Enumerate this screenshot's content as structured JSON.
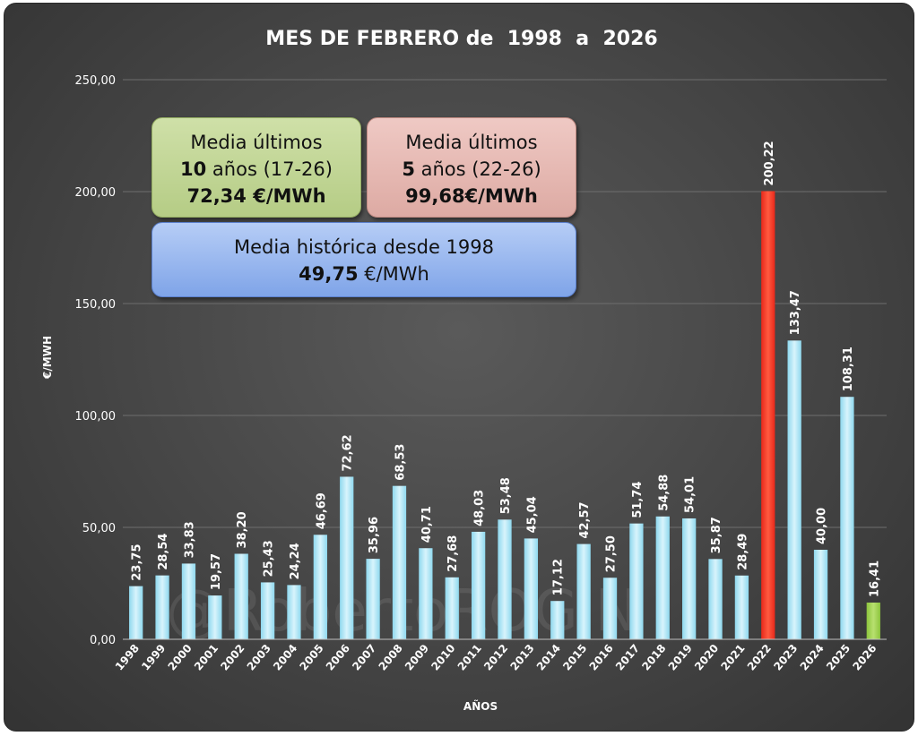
{
  "chart_data": {
    "type": "bar",
    "title": "MES DE FEBRERO de  1998  a  2026",
    "xlabel": "AÑOS",
    "ylabel": "€/MWH",
    "ylim": [
      0,
      250
    ],
    "yticks": [
      "0,00",
      "50,00",
      "100,00",
      "150,00",
      "200,00",
      "250,00"
    ],
    "grid": true,
    "categories": [
      "1998",
      "1999",
      "2000",
      "2001",
      "2002",
      "2003",
      "2004",
      "2005",
      "2006",
      "2007",
      "2008",
      "2009",
      "2010",
      "2011",
      "2012",
      "2013",
      "2014",
      "2015",
      "2016",
      "2017",
      "2018",
      "2019",
      "2020",
      "2021",
      "2022",
      "2023",
      "2024",
      "2025",
      "2026"
    ],
    "values": [
      23.75,
      28.54,
      33.83,
      19.57,
      38.2,
      25.43,
      24.24,
      46.69,
      72.62,
      35.96,
      68.53,
      40.71,
      27.68,
      48.03,
      53.48,
      45.04,
      17.12,
      42.57,
      27.5,
      51.74,
      54.88,
      54.01,
      35.87,
      28.49,
      200.22,
      133.47,
      40.0,
      108.31,
      16.41
    ],
    "value_labels": [
      "23,75",
      "28,54",
      "33,83",
      "19,57",
      "38,20",
      "25,43",
      "24,24",
      "46,69",
      "72,62",
      "35,96",
      "68,53",
      "40,71",
      "27,68",
      "48,03",
      "53,48",
      "45,04",
      "17,12",
      "42,57",
      "27,50",
      "51,74",
      "54,88",
      "54,01",
      "35,87",
      "28,49",
      "200,22",
      "133,47",
      "40,00",
      "108,31",
      "16,41"
    ],
    "colors": {
      "default": "#8fd8ee",
      "highlight_2022": "#e8281a",
      "current_2026": "#8cc43c"
    },
    "watermark": "@RobertoROGIN"
  },
  "annotations": {
    "box_10": {
      "line1": "Media últimos",
      "line2_bold": "10",
      "line2_rest": " años (17-26)",
      "line3": "72,34 €/MWh"
    },
    "box_5": {
      "line1": "Media últimos",
      "line2_bold": "5",
      "line2_rest": " años (22-26)",
      "line3": "99,68€/MWh"
    },
    "box_hist": {
      "line1": "Media histórica desde 1998",
      "line2_bold": "49,75",
      "line2_rest": " €/MWh"
    }
  }
}
